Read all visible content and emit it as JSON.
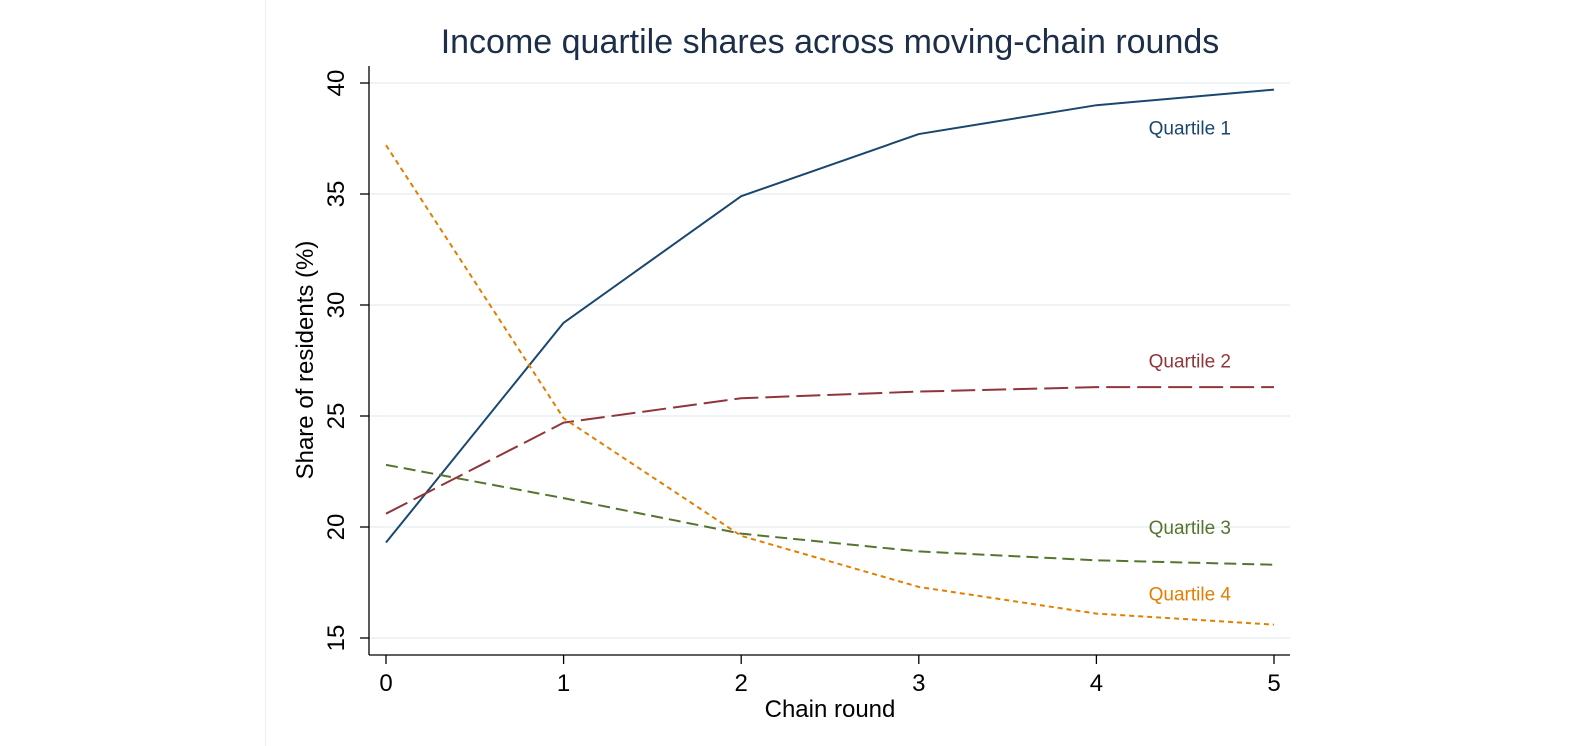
{
  "chart_data": {
    "type": "line",
    "title": "Income quartile shares across moving-chain rounds",
    "xlabel": "Chain round",
    "ylabel": "Share of residents (%)",
    "x": [
      0,
      1,
      2,
      3,
      4,
      5
    ],
    "xlim": [
      0,
      5
    ],
    "ylim": [
      15,
      40
    ],
    "xticks": [
      0,
      1,
      2,
      3,
      4,
      5
    ],
    "yticks": [
      15,
      20,
      25,
      30,
      35,
      40
    ],
    "grid": true,
    "legend": "inline labels near right end of each series",
    "series": [
      {
        "name": "Quartile 1",
        "values": [
          19.3,
          29.2,
          34.9,
          37.7,
          39.0,
          39.7
        ],
        "color": "#1a476f",
        "dash": "solid",
        "label_y": 38.0
      },
      {
        "name": "Quartile 2",
        "values": [
          20.6,
          24.7,
          25.8,
          26.1,
          26.3,
          26.3
        ],
        "color": "#90353b",
        "dash": "long-dash",
        "label_y": 27.5
      },
      {
        "name": "Quartile 3",
        "values": [
          22.8,
          21.3,
          19.7,
          18.9,
          18.5,
          18.3
        ],
        "color": "#55752f",
        "dash": "dash",
        "label_y": 20.0
      },
      {
        "name": "Quartile 4",
        "values": [
          37.2,
          24.9,
          19.6,
          17.3,
          16.1,
          15.6
        ],
        "color": "#e37e00",
        "dash": "short-dash",
        "label_y": 17.0
      }
    ]
  }
}
